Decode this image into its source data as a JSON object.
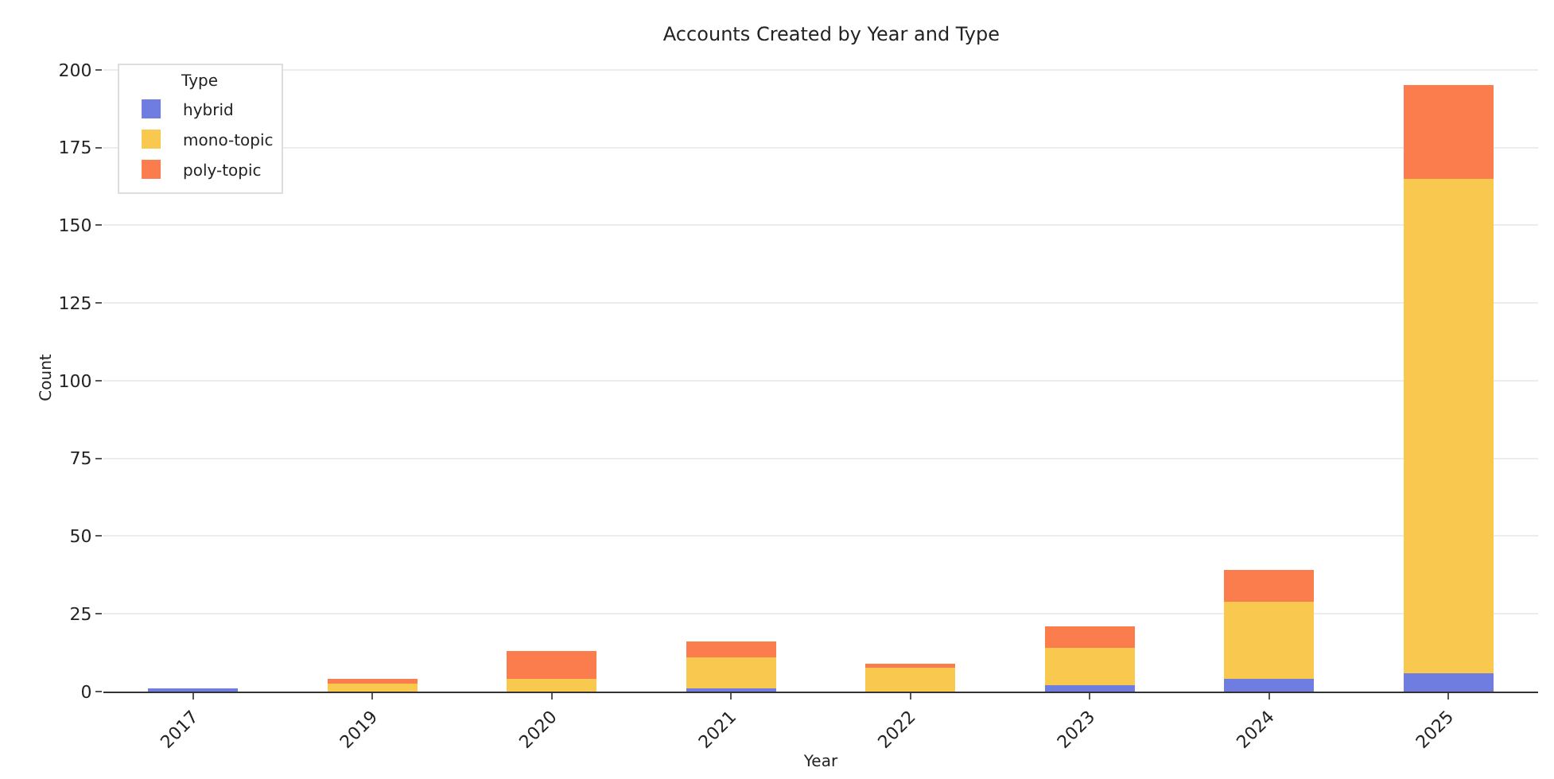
{
  "chart_data": {
    "type": "bar",
    "title": "Accounts Created by Year and Type",
    "xlabel": "Year",
    "ylabel": "Count",
    "legend_title": "Type",
    "categories": [
      "2017",
      "2019",
      "2020",
      "2021",
      "2022",
      "2023",
      "2024",
      "2025"
    ],
    "series": [
      {
        "name": "hybrid",
        "color": "#6f7de0",
        "values": [
          1,
          0,
          0,
          1,
          0,
          2,
          4,
          6
        ]
      },
      {
        "name": "mono-topic",
        "color": "#f8c94e",
        "values": [
          0,
          3,
          4,
          10,
          8,
          12,
          25,
          159
        ]
      },
      {
        "name": "poly-topic",
        "color": "#fb7c4c",
        "values": [
          0,
          1,
          9,
          5,
          1,
          7,
          10,
          30
        ]
      }
    ],
    "stacked": true,
    "ylim": [
      0,
      202
    ],
    "yticks": [
      0,
      25,
      50,
      75,
      100,
      125,
      150,
      175,
      200
    ],
    "grid": "y",
    "legend": "top left"
  }
}
